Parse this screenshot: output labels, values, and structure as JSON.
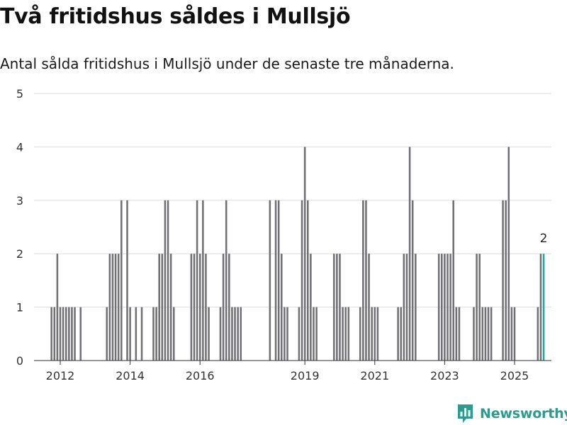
{
  "title": "Två fritidshus såldes i Mullsjö",
  "subtitle": "Antal sålda fritidshus i Mullsjö under de senaste tre månaderna.",
  "brand": {
    "name": "Newsworthy",
    "color": "#2a9d8f",
    "icon": "newsworthy-bar-chart-icon"
  },
  "colors": {
    "bar": "#717075",
    "highlight": "#26a69a",
    "grid": "#dddddd",
    "axis": "#333333"
  },
  "chart_data": {
    "type": "bar",
    "ylim": [
      0,
      5
    ],
    "yticks": [
      0,
      1,
      2,
      3,
      4,
      5
    ],
    "xticks": [
      {
        "label": "2012",
        "date": "2012-01"
      },
      {
        "label": "2014",
        "date": "2014-01"
      },
      {
        "label": "2016",
        "date": "2016-01"
      },
      {
        "label": "2019",
        "date": "2019-01"
      },
      {
        "label": "2021",
        "date": "2021-01"
      },
      {
        "label": "2023",
        "date": "2023-01"
      },
      {
        "label": "2025",
        "date": "2025-01"
      }
    ],
    "highlight_label": "2",
    "grid": true,
    "series": [
      {
        "points": [
          {
            "x": "2011-01",
            "y": 0
          },
          {
            "x": "2011-02",
            "y": 0
          },
          {
            "x": "2011-03",
            "y": 0
          },
          {
            "x": "2011-04",
            "y": 0
          },
          {
            "x": "2011-05",
            "y": 0
          },
          {
            "x": "2011-06",
            "y": 0
          },
          {
            "x": "2011-07",
            "y": 0
          },
          {
            "x": "2011-08",
            "y": 0
          },
          {
            "x": "2011-09",
            "y": 0
          },
          {
            "x": "2011-10",
            "y": 1
          },
          {
            "x": "2011-11",
            "y": 1
          },
          {
            "x": "2011-12",
            "y": 2
          },
          {
            "x": "2012-01",
            "y": 1
          },
          {
            "x": "2012-02",
            "y": 1
          },
          {
            "x": "2012-03",
            "y": 1
          },
          {
            "x": "2012-04",
            "y": 1
          },
          {
            "x": "2012-05",
            "y": 1
          },
          {
            "x": "2012-06",
            "y": 1
          },
          {
            "x": "2012-07",
            "y": 0
          },
          {
            "x": "2012-08",
            "y": 1
          },
          {
            "x": "2012-09",
            "y": 0
          },
          {
            "x": "2012-10",
            "y": 0
          },
          {
            "x": "2012-11",
            "y": 0
          },
          {
            "x": "2012-12",
            "y": 0
          },
          {
            "x": "2013-01",
            "y": 0
          },
          {
            "x": "2013-02",
            "y": 0
          },
          {
            "x": "2013-03",
            "y": 0
          },
          {
            "x": "2013-04",
            "y": 0
          },
          {
            "x": "2013-05",
            "y": 1
          },
          {
            "x": "2013-06",
            "y": 2
          },
          {
            "x": "2013-07",
            "y": 2
          },
          {
            "x": "2013-08",
            "y": 2
          },
          {
            "x": "2013-09",
            "y": 2
          },
          {
            "x": "2013-10",
            "y": 3
          },
          {
            "x": "2013-11",
            "y": 0
          },
          {
            "x": "2013-12",
            "y": 3
          },
          {
            "x": "2014-01",
            "y": 1
          },
          {
            "x": "2014-02",
            "y": 0
          },
          {
            "x": "2014-03",
            "y": 1
          },
          {
            "x": "2014-04",
            "y": 0
          },
          {
            "x": "2014-05",
            "y": 1
          },
          {
            "x": "2014-06",
            "y": 0
          },
          {
            "x": "2014-07",
            "y": 0
          },
          {
            "x": "2014-08",
            "y": 0
          },
          {
            "x": "2014-09",
            "y": 1
          },
          {
            "x": "2014-10",
            "y": 1
          },
          {
            "x": "2014-11",
            "y": 2
          },
          {
            "x": "2014-12",
            "y": 2
          },
          {
            "x": "2015-01",
            "y": 3
          },
          {
            "x": "2015-02",
            "y": 3
          },
          {
            "x": "2015-03",
            "y": 2
          },
          {
            "x": "2015-04",
            "y": 1
          },
          {
            "x": "2015-05",
            "y": 0
          },
          {
            "x": "2015-06",
            "y": 0
          },
          {
            "x": "2015-07",
            "y": 0
          },
          {
            "x": "2015-08",
            "y": 0
          },
          {
            "x": "2015-09",
            "y": 0
          },
          {
            "x": "2015-10",
            "y": 2
          },
          {
            "x": "2015-11",
            "y": 2
          },
          {
            "x": "2015-12",
            "y": 3
          },
          {
            "x": "2016-01",
            "y": 2
          },
          {
            "x": "2016-02",
            "y": 3
          },
          {
            "x": "2016-03",
            "y": 2
          },
          {
            "x": "2016-04",
            "y": 1
          },
          {
            "x": "2016-05",
            "y": 0
          },
          {
            "x": "2016-06",
            "y": 0
          },
          {
            "x": "2016-07",
            "y": 0
          },
          {
            "x": "2016-08",
            "y": 1
          },
          {
            "x": "2016-09",
            "y": 2
          },
          {
            "x": "2016-10",
            "y": 3
          },
          {
            "x": "2016-11",
            "y": 2
          },
          {
            "x": "2016-12",
            "y": 1
          },
          {
            "x": "2017-01",
            "y": 1
          },
          {
            "x": "2017-02",
            "y": 1
          },
          {
            "x": "2017-03",
            "y": 1
          },
          {
            "x": "2017-04",
            "y": 0
          },
          {
            "x": "2017-05",
            "y": 0
          },
          {
            "x": "2017-06",
            "y": 0
          },
          {
            "x": "2017-07",
            "y": 0
          },
          {
            "x": "2017-08",
            "y": 0
          },
          {
            "x": "2017-09",
            "y": 0
          },
          {
            "x": "2017-10",
            "y": 0
          },
          {
            "x": "2017-11",
            "y": 0
          },
          {
            "x": "2017-12",
            "y": 0
          },
          {
            "x": "2018-01",
            "y": 3
          },
          {
            "x": "2018-02",
            "y": 0
          },
          {
            "x": "2018-03",
            "y": 3
          },
          {
            "x": "2018-04",
            "y": 3
          },
          {
            "x": "2018-05",
            "y": 2
          },
          {
            "x": "2018-06",
            "y": 1
          },
          {
            "x": "2018-07",
            "y": 1
          },
          {
            "x": "2018-08",
            "y": 0
          },
          {
            "x": "2018-09",
            "y": 0
          },
          {
            "x": "2018-10",
            "y": 0
          },
          {
            "x": "2018-11",
            "y": 1
          },
          {
            "x": "2018-12",
            "y": 3
          },
          {
            "x": "2019-01",
            "y": 4
          },
          {
            "x": "2019-02",
            "y": 3
          },
          {
            "x": "2019-03",
            "y": 2
          },
          {
            "x": "2019-04",
            "y": 1
          },
          {
            "x": "2019-05",
            "y": 1
          },
          {
            "x": "2019-06",
            "y": 0
          },
          {
            "x": "2019-07",
            "y": 0
          },
          {
            "x": "2019-08",
            "y": 0
          },
          {
            "x": "2019-09",
            "y": 0
          },
          {
            "x": "2019-10",
            "y": 0
          },
          {
            "x": "2019-11",
            "y": 2
          },
          {
            "x": "2019-12",
            "y": 2
          },
          {
            "x": "2020-01",
            "y": 2
          },
          {
            "x": "2020-02",
            "y": 1
          },
          {
            "x": "2020-03",
            "y": 1
          },
          {
            "x": "2020-04",
            "y": 1
          },
          {
            "x": "2020-05",
            "y": 0
          },
          {
            "x": "2020-06",
            "y": 0
          },
          {
            "x": "2020-07",
            "y": 0
          },
          {
            "x": "2020-08",
            "y": 1
          },
          {
            "x": "2020-09",
            "y": 3
          },
          {
            "x": "2020-10",
            "y": 3
          },
          {
            "x": "2020-11",
            "y": 2
          },
          {
            "x": "2020-12",
            "y": 1
          },
          {
            "x": "2021-01",
            "y": 1
          },
          {
            "x": "2021-02",
            "y": 1
          },
          {
            "x": "2021-03",
            "y": 0
          },
          {
            "x": "2021-04",
            "y": 0
          },
          {
            "x": "2021-05",
            "y": 0
          },
          {
            "x": "2021-06",
            "y": 0
          },
          {
            "x": "2021-07",
            "y": 0
          },
          {
            "x": "2021-08",
            "y": 0
          },
          {
            "x": "2021-09",
            "y": 1
          },
          {
            "x": "2021-10",
            "y": 1
          },
          {
            "x": "2021-11",
            "y": 2
          },
          {
            "x": "2021-12",
            "y": 2
          },
          {
            "x": "2022-01",
            "y": 4
          },
          {
            "x": "2022-02",
            "y": 3
          },
          {
            "x": "2022-03",
            "y": 2
          },
          {
            "x": "2022-04",
            "y": 0
          },
          {
            "x": "2022-05",
            "y": 0
          },
          {
            "x": "2022-06",
            "y": 0
          },
          {
            "x": "2022-07",
            "y": 0
          },
          {
            "x": "2022-08",
            "y": 0
          },
          {
            "x": "2022-09",
            "y": 0
          },
          {
            "x": "2022-10",
            "y": 0
          },
          {
            "x": "2022-11",
            "y": 2
          },
          {
            "x": "2022-12",
            "y": 2
          },
          {
            "x": "2023-01",
            "y": 2
          },
          {
            "x": "2023-02",
            "y": 2
          },
          {
            "x": "2023-03",
            "y": 2
          },
          {
            "x": "2023-04",
            "y": 3
          },
          {
            "x": "2023-05",
            "y": 1
          },
          {
            "x": "2023-06",
            "y": 1
          },
          {
            "x": "2023-07",
            "y": 0
          },
          {
            "x": "2023-08",
            "y": 0
          },
          {
            "x": "2023-09",
            "y": 0
          },
          {
            "x": "2023-10",
            "y": 0
          },
          {
            "x": "2023-11",
            "y": 1
          },
          {
            "x": "2023-12",
            "y": 2
          },
          {
            "x": "2024-01",
            "y": 2
          },
          {
            "x": "2024-02",
            "y": 1
          },
          {
            "x": "2024-03",
            "y": 1
          },
          {
            "x": "2024-04",
            "y": 1
          },
          {
            "x": "2024-05",
            "y": 1
          },
          {
            "x": "2024-06",
            "y": 0
          },
          {
            "x": "2024-07",
            "y": 0
          },
          {
            "x": "2024-08",
            "y": 0
          },
          {
            "x": "2024-09",
            "y": 3
          },
          {
            "x": "2024-10",
            "y": 3
          },
          {
            "x": "2024-11",
            "y": 4
          },
          {
            "x": "2024-12",
            "y": 1
          },
          {
            "x": "2025-01",
            "y": 1
          },
          {
            "x": "2025-02",
            "y": 0
          },
          {
            "x": "2025-03",
            "y": 0
          },
          {
            "x": "2025-04",
            "y": 0
          },
          {
            "x": "2025-05",
            "y": 0
          },
          {
            "x": "2025-06",
            "y": 0
          },
          {
            "x": "2025-07",
            "y": 0
          },
          {
            "x": "2025-08",
            "y": 0
          },
          {
            "x": "2025-09",
            "y": 1
          },
          {
            "x": "2025-10",
            "y": 2
          },
          {
            "x": "2025-11",
            "y": 2
          }
        ]
      }
    ]
  }
}
